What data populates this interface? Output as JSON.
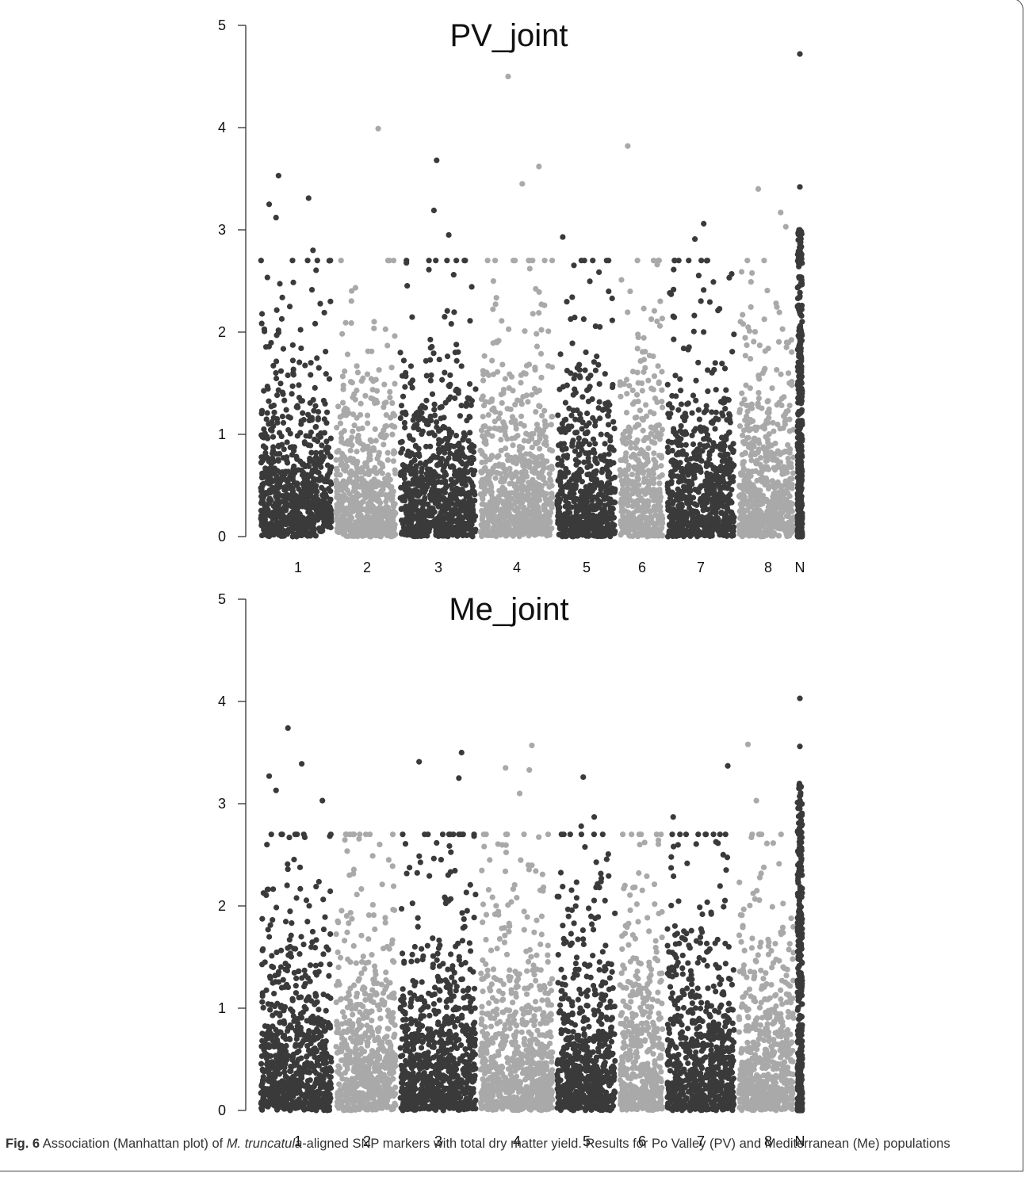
{
  "figure": {
    "caption_label": "Fig. 6",
    "caption_text_before_species": " Association (Manhattan plot) of ",
    "caption_species": "M. truncatula",
    "caption_text_after_species": "-aligned SNP markers with total dry matter yield. Results for Po Valley (PV) and Mediterranean (Me) populations"
  },
  "chart_data": [
    {
      "type": "scatter",
      "title": "PV_joint",
      "xlabel": "",
      "ylabel": "",
      "ylim": [
        0,
        5
      ],
      "yticks": [
        "0",
        "1",
        "2",
        "3",
        "4",
        "5"
      ],
      "chromosomes": [
        "1",
        "2",
        "3",
        "4",
        "5",
        "6",
        "7",
        "8",
        "N"
      ],
      "series_colors": [
        "#3a3a3a",
        "#a9a9a9"
      ],
      "grid": false,
      "notable_peaks": [
        {
          "chromosome": "N",
          "y": 4.72
        },
        {
          "chromosome": "4",
          "y": 4.5
        },
        {
          "chromosome": "2",
          "y": 3.99
        },
        {
          "chromosome": "6",
          "y": 3.82
        },
        {
          "chromosome": "3",
          "y": 3.68
        },
        {
          "chromosome": "4",
          "y": 3.62
        },
        {
          "chromosome": "1",
          "y": 3.53
        },
        {
          "chromosome": "4",
          "y": 3.45
        },
        {
          "chromosome": "N",
          "y": 3.42
        },
        {
          "chromosome": "8",
          "y": 3.4
        },
        {
          "chromosome": "1",
          "y": 3.31
        },
        {
          "chromosome": "1",
          "y": 3.25
        },
        {
          "chromosome": "3",
          "y": 3.19
        },
        {
          "chromosome": "8",
          "y": 3.17
        },
        {
          "chromosome": "1",
          "y": 3.12
        },
        {
          "chromosome": "7",
          "y": 3.06
        },
        {
          "chromosome": "8",
          "y": 3.03
        },
        {
          "chromosome": "N",
          "y": 3.0
        },
        {
          "chromosome": "3",
          "y": 2.95
        },
        {
          "chromosome": "5",
          "y": 2.93
        },
        {
          "chromosome": "7",
          "y": 2.91
        },
        {
          "chromosome": "1",
          "y": 2.8
        }
      ]
    },
    {
      "type": "scatter",
      "title": "Me_joint",
      "xlabel": "",
      "ylabel": "",
      "ylim": [
        0,
        5
      ],
      "yticks": [
        "0",
        "1",
        "2",
        "3",
        "4",
        "5"
      ],
      "chromosomes": [
        "1",
        "2",
        "3",
        "4",
        "5",
        "6",
        "7",
        "8",
        "N"
      ],
      "series_colors": [
        "#3a3a3a",
        "#a9a9a9"
      ],
      "grid": false,
      "notable_peaks": [
        {
          "chromosome": "N",
          "y": 4.03
        },
        {
          "chromosome": "1",
          "y": 3.74
        },
        {
          "chromosome": "4",
          "y": 3.57
        },
        {
          "chromosome": "8",
          "y": 3.58
        },
        {
          "chromosome": "N",
          "y": 3.56
        },
        {
          "chromosome": "3",
          "y": 3.5
        },
        {
          "chromosome": "3",
          "y": 3.41
        },
        {
          "chromosome": "1",
          "y": 3.39
        },
        {
          "chromosome": "7",
          "y": 3.37
        },
        {
          "chromosome": "4",
          "y": 3.35
        },
        {
          "chromosome": "4",
          "y": 3.33
        },
        {
          "chromosome": "1",
          "y": 3.27
        },
        {
          "chromosome": "5",
          "y": 3.26
        },
        {
          "chromosome": "3",
          "y": 3.25
        },
        {
          "chromosome": "1",
          "y": 3.13
        },
        {
          "chromosome": "4",
          "y": 3.1
        },
        {
          "chromosome": "1",
          "y": 3.03
        },
        {
          "chromosome": "8",
          "y": 3.03
        },
        {
          "chromosome": "5",
          "y": 2.87
        },
        {
          "chromosome": "7",
          "y": 2.87
        },
        {
          "chromosome": "5",
          "y": 2.78
        }
      ]
    }
  ]
}
